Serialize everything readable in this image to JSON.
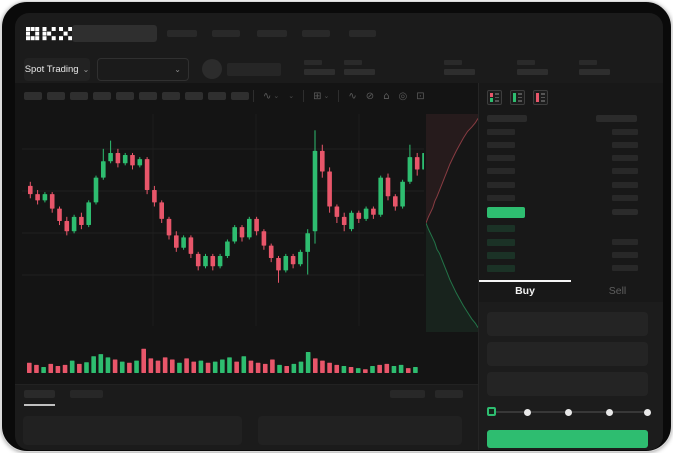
{
  "brand": {
    "logo": "OKX"
  },
  "nav": {
    "item_count": 5
  },
  "subheader": {
    "market_selector_label": "Spot Trading",
    "stat_count": 5
  },
  "toolbar": {
    "skeleton_button_count": 10,
    "icons": [
      {
        "name": "chart-type-icon",
        "glyph": "∿",
        "chevron": "⌄",
        "divider_before": true
      },
      {
        "name": "overlay-dropdown-icon",
        "glyph": "",
        "chevron": "⌄",
        "divider_before": false
      },
      {
        "name": "indicators-icon",
        "glyph": "⊞",
        "chevron": "⌄",
        "divider_before": true
      },
      {
        "name": "line-style-icon",
        "glyph": "∿",
        "chevron": "",
        "divider_before": true
      },
      {
        "name": "draw-tools-icon",
        "glyph": "⊘",
        "chevron": "",
        "divider_before": false
      },
      {
        "name": "snapshot-icon",
        "glyph": "⌂",
        "chevron": "",
        "divider_before": false
      },
      {
        "name": "alert-icon",
        "glyph": "◎",
        "chevron": "",
        "divider_before": false
      },
      {
        "name": "fullscreen-icon",
        "glyph": "⊡",
        "chevron": "",
        "divider_before": false
      }
    ]
  },
  "chart_data": {
    "type": "candlestick",
    "title": "",
    "note": "skeleton trading mockup; no numeric axis labels visible, prices on relative 0-100 scale",
    "grid": true,
    "legend": "none",
    "colors": {
      "up": "#2ebd70",
      "down": "#e8566a"
    },
    "candles_ohlc": [
      [
        68,
        70,
        62,
        64
      ],
      [
        64,
        66,
        59,
        61
      ],
      [
        61,
        65,
        60,
        64
      ],
      [
        64,
        65,
        55,
        57
      ],
      [
        57,
        58,
        49,
        51
      ],
      [
        51,
        53,
        44,
        46
      ],
      [
        46,
        54,
        45,
        53
      ],
      [
        53,
        55,
        47,
        49
      ],
      [
        49,
        61,
        48,
        60
      ],
      [
        60,
        73,
        59,
        72
      ],
      [
        72,
        86,
        71,
        80
      ],
      [
        80,
        90,
        79,
        84
      ],
      [
        84,
        86,
        77,
        79
      ],
      [
        79,
        84,
        78,
        83
      ],
      [
        83,
        84,
        76,
        78
      ],
      [
        78,
        82,
        77,
        81
      ],
      [
        81,
        82,
        64,
        66
      ],
      [
        66,
        68,
        58,
        60
      ],
      [
        60,
        61,
        50,
        52
      ],
      [
        52,
        53,
        42,
        44
      ],
      [
        44,
        46,
        36,
        38
      ],
      [
        38,
        44,
        37,
        43
      ],
      [
        43,
        44,
        33,
        35
      ],
      [
        35,
        36,
        27,
        29
      ],
      [
        29,
        35,
        28,
        34
      ],
      [
        34,
        35,
        27,
        29
      ],
      [
        29,
        35,
        28,
        34
      ],
      [
        34,
        42,
        33,
        41
      ],
      [
        41,
        49,
        40,
        48
      ],
      [
        48,
        49,
        41,
        43
      ],
      [
        43,
        53,
        42,
        52
      ],
      [
        52,
        53,
        44,
        46
      ],
      [
        46,
        47,
        37,
        39
      ],
      [
        39,
        40,
        31,
        33
      ],
      [
        33,
        34,
        21,
        27
      ],
      [
        27,
        35,
        26,
        34
      ],
      [
        34,
        35,
        28,
        30
      ],
      [
        30,
        37,
        29,
        36
      ],
      [
        36,
        47,
        25,
        45
      ],
      [
        46,
        95,
        40,
        85
      ],
      [
        85,
        88,
        72,
        75
      ],
      [
        75,
        77,
        55,
        58
      ],
      [
        58,
        59,
        50,
        53
      ],
      [
        53,
        55,
        46,
        49
      ],
      [
        47,
        56,
        46,
        55
      ],
      [
        55,
        56,
        50,
        52
      ],
      [
        52,
        58,
        51,
        57
      ],
      [
        57,
        58,
        52,
        54
      ],
      [
        54,
        73,
        53,
        72
      ],
      [
        72,
        74,
        61,
        63
      ],
      [
        63,
        64,
        56,
        58
      ],
      [
        58,
        71,
        57,
        70
      ],
      [
        70,
        88,
        69,
        82
      ],
      [
        82,
        84,
        73,
        76
      ],
      [
        76,
        90,
        75,
        84
      ]
    ],
    "volume": [
      38,
      30,
      22,
      34,
      26,
      30,
      46,
      34,
      40,
      62,
      70,
      58,
      50,
      42,
      38,
      46,
      90,
      54,
      46,
      58,
      50,
      38,
      54,
      42,
      46,
      38,
      42,
      50,
      58,
      42,
      62,
      46,
      38,
      34,
      50,
      30,
      26,
      34,
      42,
      78,
      54,
      46,
      38,
      30,
      26,
      22,
      18,
      14,
      26,
      30,
      34,
      26,
      30,
      18,
      22
    ],
    "depth_sidebar": {
      "asks_curve": [
        [
          0,
          50
        ],
        [
          5,
          47
        ],
        [
          9,
          45
        ],
        [
          13,
          43
        ],
        [
          17,
          40
        ],
        [
          21,
          38
        ],
        [
          26,
          35
        ],
        [
          31,
          32
        ],
        [
          36,
          29
        ],
        [
          41,
          26
        ],
        [
          46,
          23
        ],
        [
          52,
          20
        ],
        [
          58,
          17
        ],
        [
          65,
          14
        ],
        [
          72,
          11
        ],
        [
          80,
          8
        ],
        [
          88,
          6
        ],
        [
          95,
          4
        ],
        [
          100,
          2
        ]
      ],
      "bids_curve": [
        [
          0,
          50
        ],
        [
          5,
          53
        ],
        [
          9,
          55
        ],
        [
          13,
          57
        ],
        [
          17,
          59
        ],
        [
          21,
          62
        ],
        [
          26,
          64
        ],
        [
          31,
          67
        ],
        [
          36,
          70
        ],
        [
          41,
          73
        ],
        [
          46,
          76
        ],
        [
          52,
          79
        ],
        [
          58,
          82
        ],
        [
          65,
          85
        ],
        [
          72,
          88
        ],
        [
          80,
          91
        ],
        [
          88,
          94
        ],
        [
          95,
          96
        ],
        [
          100,
          98
        ]
      ]
    }
  },
  "orderbook": {
    "view_icons": [
      {
        "name": "orderbook-combined-icon",
        "mode": "split"
      },
      {
        "name": "orderbook-bids-icon",
        "mode": "green"
      },
      {
        "name": "orderbook-asks-icon",
        "mode": "red"
      }
    ],
    "ask_rows": 6,
    "bid_rows": 4,
    "bid_rows_with_right_bar": [
      false,
      true,
      true,
      true
    ],
    "last_price_bar_color": "#2ebd70"
  },
  "trade_panel": {
    "tabs": [
      {
        "label": "Buy",
        "active": true
      },
      {
        "label": "Sell",
        "active": false
      }
    ],
    "field_count": 3,
    "slider": {
      "stops": 5,
      "active_stop": 0
    },
    "submit_button_color": "#2ebd70"
  },
  "bottom_panel": {
    "tab_count": 2,
    "right_control_count": 2,
    "panel_count": 2
  }
}
